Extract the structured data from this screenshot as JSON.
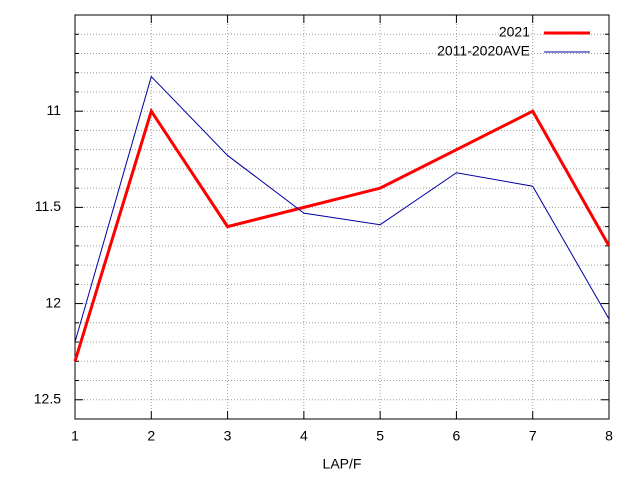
{
  "chart_data": {
    "type": "line",
    "x_label": "LAP/F",
    "x": [
      1,
      2,
      3,
      4,
      5,
      6,
      7,
      8
    ],
    "series": [
      {
        "name": "2021",
        "color": "#ff0000",
        "width": 3,
        "values": [
          12.3,
          11.0,
          11.6,
          11.5,
          11.4,
          11.2,
          11.0,
          11.7
        ]
      },
      {
        "name": "2011-2020AVE",
        "color": "#0000a0",
        "width": 1,
        "values": [
          12.2,
          10.82,
          11.23,
          11.53,
          11.59,
          11.32,
          11.39,
          12.08
        ]
      }
    ],
    "xlim": [
      1,
      8
    ],
    "xticks": [
      1,
      2,
      3,
      4,
      5,
      6,
      7,
      8
    ],
    "ylim": [
      10.5,
      12.6
    ],
    "yticks": [
      11,
      11.5,
      12,
      12.5
    ],
    "minor_yticks": [
      10.6,
      10.7,
      10.8,
      10.9,
      11.1,
      11.2,
      11.3,
      11.4,
      11.6,
      11.7,
      11.8,
      11.9,
      12.1,
      12.2,
      12.3,
      12.4,
      12.6
    ],
    "y_reversed": true,
    "grid": true,
    "legend": "top-right"
  }
}
